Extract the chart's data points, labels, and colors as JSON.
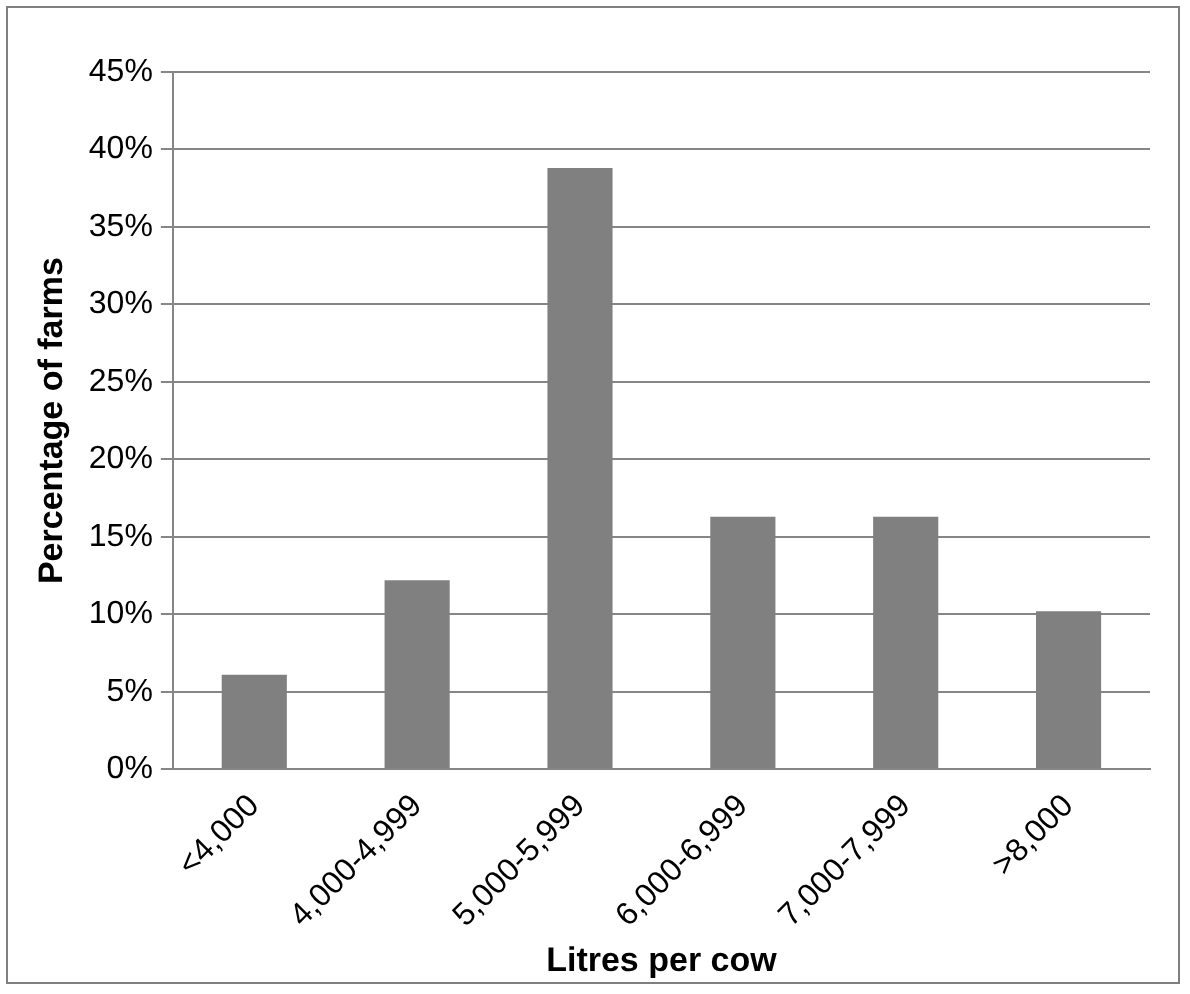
{
  "chart_data": {
    "type": "bar",
    "xlabel": "Litres per cow",
    "ylabel": "Percentage of farms",
    "categories": [
      "<4,000",
      "4,000-4,999",
      "5,000-5,999",
      "6,000-6,999",
      "7,000-7,999",
      ">8,000"
    ],
    "values": [
      6.1,
      12.2,
      38.8,
      16.3,
      16.3,
      10.2
    ],
    "color": "#808080",
    "ylim": [
      0,
      45
    ],
    "yticks": [
      {
        "value": 0,
        "label": "0%"
      },
      {
        "value": 5,
        "label": "5%"
      },
      {
        "value": 10,
        "label": "10%"
      },
      {
        "value": 15,
        "label": "15%"
      },
      {
        "value": 20,
        "label": "20%"
      },
      {
        "value": 25,
        "label": "25%"
      },
      {
        "value": 30,
        "label": "30%"
      },
      {
        "value": 35,
        "label": "35%"
      },
      {
        "value": 40,
        "label": "40%"
      },
      {
        "value": 45,
        "label": "45%"
      }
    ],
    "grid": "y",
    "legend": false
  }
}
